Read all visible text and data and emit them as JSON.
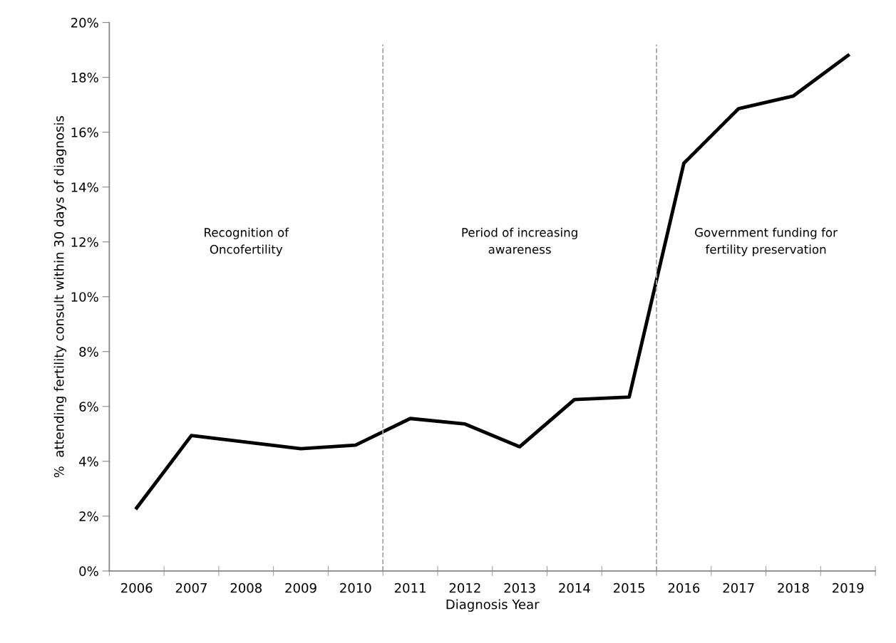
{
  "chart_data": {
    "type": "line",
    "xlabel": "Diagnosis Year",
    "ylabel": "%  attending fertility consult within 30 days of diagnosis",
    "x": [
      2006,
      2007,
      2008,
      2009,
      2010,
      2011,
      2012,
      2013,
      2014,
      2015,
      2016,
      2017,
      2018,
      2019
    ],
    "series": [
      {
        "color": "#000000",
        "values": [
          2.3,
          4.94,
          4.7,
          4.46,
          4.59,
          5.56,
          5.36,
          4.53,
          6.25,
          6.34,
          14.87,
          16.86,
          17.32,
          18.8
        ]
      }
    ],
    "xlim": [
      2005.5,
      2019.5
    ],
    "xticks": [
      2006,
      2007,
      2008,
      2009,
      2010,
      2011,
      2012,
      2013,
      2014,
      2015,
      2016,
      2017,
      2018,
      2019
    ],
    "ylim": [
      0,
      20
    ],
    "yticks": [
      {
        "value": 0,
        "label": "0%"
      },
      {
        "value": 2,
        "label": "2%"
      },
      {
        "value": 4,
        "label": "4%"
      },
      {
        "value": 6,
        "label": "6%"
      },
      {
        "value": 8,
        "label": "8%"
      },
      {
        "value": 10,
        "label": "10%"
      },
      {
        "value": 12,
        "label": "12%"
      },
      {
        "value": 14,
        "label": "14%"
      },
      {
        "value": 16,
        "label": "16%"
      },
      {
        "value": 18,
        "label": "18%"
      },
      {
        "value": 20,
        "label": "20%"
      }
    ],
    "ref_lines": [
      {
        "axis": "x",
        "value": 2010.5,
        "color": "#a6a6a6",
        "line_style": "dashed"
      },
      {
        "axis": "x",
        "value": 2015.5,
        "color": "#a6a6a6",
        "line_style": "dashed"
      }
    ],
    "annotations": [
      "Recognition of\nOncofertility",
      "Period of increasing\nawareness",
      "Government funding for\nfertility preservation"
    ],
    "grid": false,
    "marker": "none",
    "line_style": "solid"
  }
}
